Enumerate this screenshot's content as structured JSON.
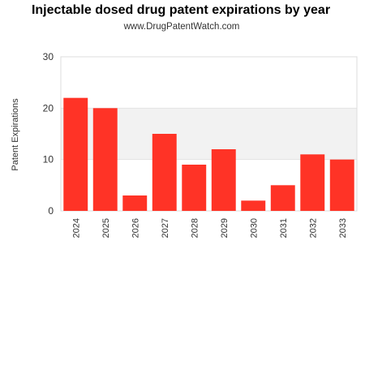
{
  "chart_data": {
    "type": "bar",
    "title": "Injectable dosed drug patent expirations by year",
    "subtitle": "www.DrugPatentWatch.com",
    "xlabel": "",
    "ylabel": "Patent Expirations",
    "categories": [
      "2024",
      "2025",
      "2026",
      "2027",
      "2028",
      "2029",
      "2030",
      "2031",
      "2032",
      "2033"
    ],
    "values": [
      22,
      20,
      3,
      15,
      9,
      12,
      2,
      5,
      11,
      10
    ],
    "ylim": [
      0,
      30
    ],
    "yticks": [
      "0",
      "10",
      "20",
      "30"
    ],
    "bar_color": "#ff3326",
    "band_color": "#f2f2f2",
    "grid": true
  }
}
